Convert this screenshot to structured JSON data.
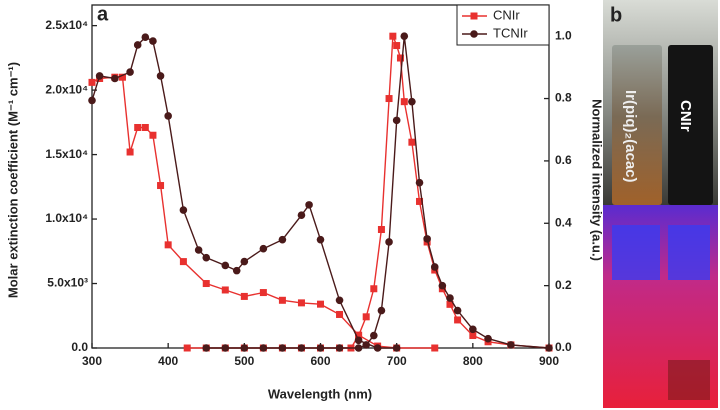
{
  "chart_data": {
    "type": "line",
    "panel_a": "a",
    "panel_b": "b",
    "xlabel": "Wavelength (nm)",
    "ylabel": "Molar extinction coefficient (M⁻¹ cm⁻¹)",
    "y2label": "Normalized intensity (a.u.)",
    "xlim": [
      300,
      900
    ],
    "xticks": [
      300,
      400,
      500,
      600,
      700,
      800,
      900
    ],
    "ylim": [
      0,
      26600
    ],
    "yticks": [
      {
        "value": 0,
        "label": "0.0"
      },
      {
        "value": 5000,
        "label": "5.0x10³"
      },
      {
        "value": 10000,
        "label": "1.0x10⁴"
      },
      {
        "value": 15000,
        "label": "1.5x10⁴"
      },
      {
        "value": 20000,
        "label": "2.0x10⁴"
      },
      {
        "value": 25000,
        "label": "2.5x10⁴"
      }
    ],
    "y2lim": [
      0,
      1.1
    ],
    "y2ticks": [
      {
        "value": 0,
        "label": "0.0"
      },
      0.2,
      0.4,
      0.6,
      0.8,
      {
        "value": 1,
        "label": "1.0"
      }
    ],
    "legend": "top-right",
    "series": [
      {
        "name": "CNIr",
        "color": "#e8312f",
        "marker": "square",
        "absorption": {
          "x": [
            300,
            310,
            330,
            340,
            350,
            360,
            370,
            380,
            390,
            400,
            420,
            450,
            475,
            500,
            525,
            550,
            575,
            600,
            625,
            650,
            675,
            700,
            750
          ],
          "values": [
            20600,
            20900,
            21000,
            21000,
            15200,
            17100,
            17100,
            16500,
            12600,
            8000,
            6700,
            5000,
            4500,
            4000,
            4300,
            3700,
            3500,
            3400,
            2600,
            1000,
            150,
            0,
            0
          ]
        },
        "emission": {
          "axis": "y2",
          "x": [
            425,
            450,
            475,
            500,
            525,
            550,
            575,
            600,
            625,
            640,
            650,
            660,
            670,
            680,
            690,
            695,
            700,
            705,
            710,
            720,
            730,
            740,
            750,
            760,
            770,
            780,
            800,
            820,
            850,
            900
          ],
          "values": [
            0,
            0,
            0,
            0,
            0,
            0,
            0,
            0,
            0,
            0,
            0.04,
            0.1,
            0.19,
            0.38,
            0.8,
            1.0,
            0.97,
            0.93,
            0.79,
            0.66,
            0.47,
            0.34,
            0.25,
            0.19,
            0.14,
            0.09,
            0.04,
            0.02,
            0.01,
            0
          ]
        }
      },
      {
        "name": "TCNIr",
        "color": "#4a1a1a",
        "marker": "circle",
        "absorption": {
          "x": [
            300,
            310,
            330,
            350,
            360,
            370,
            380,
            390,
            400,
            420,
            440,
            450,
            475,
            490,
            500,
            525,
            550,
            575,
            585,
            600,
            625,
            650,
            675,
            700
          ],
          "values": [
            19200,
            21100,
            20900,
            21400,
            23500,
            24100,
            23800,
            21100,
            18000,
            10700,
            7600,
            7000,
            6400,
            6000,
            6700,
            7700,
            8400,
            10300,
            11100,
            8400,
            3700,
            600,
            0,
            0
          ]
        },
        "emission": {
          "axis": "y2",
          "x": [
            450,
            475,
            500,
            525,
            550,
            575,
            600,
            625,
            650,
            660,
            670,
            680,
            690,
            700,
            710,
            720,
            730,
            740,
            750,
            760,
            770,
            780,
            800,
            820,
            850,
            900
          ],
          "values": [
            0,
            0,
            0,
            0,
            0,
            0,
            0,
            0,
            0,
            0.01,
            0.04,
            0.12,
            0.34,
            0.73,
            1.0,
            0.79,
            0.53,
            0.35,
            0.26,
            0.2,
            0.16,
            0.12,
            0.06,
            0.03,
            0.01,
            0
          ]
        }
      }
    ],
    "photo_labels": [
      "Ir(piq)₂(acac)",
      "CNIr"
    ]
  }
}
